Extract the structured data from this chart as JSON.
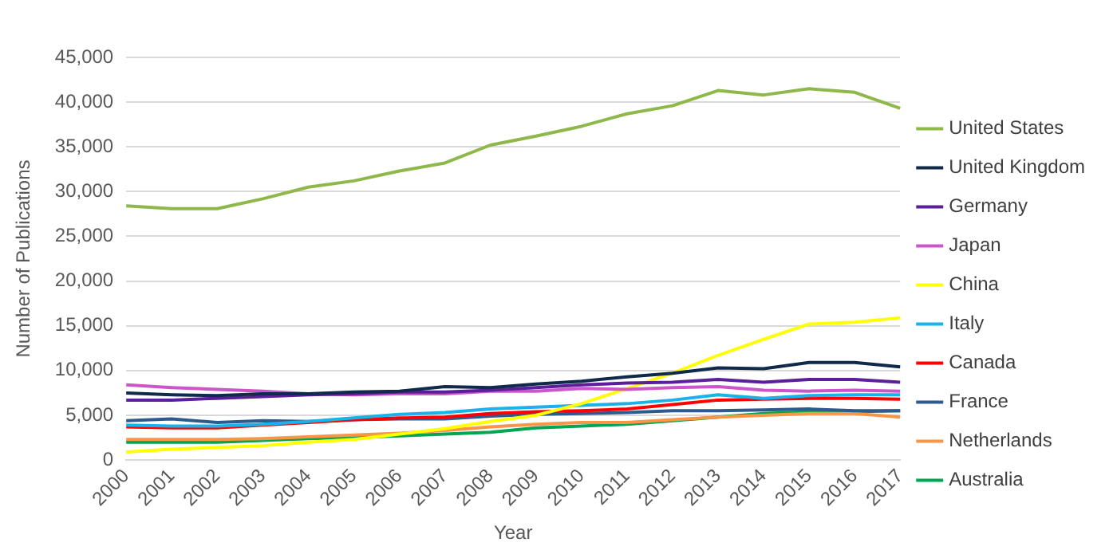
{
  "chart_data": {
    "type": "line",
    "xlabel": "Year",
    "ylabel": "Number of Publications",
    "categories": [
      "2000",
      "2001",
      "2002",
      "2003",
      "2004",
      "2005",
      "2006",
      "2007",
      "2008",
      "2009",
      "2010",
      "2011",
      "2012",
      "2013",
      "2014",
      "2015",
      "2016",
      "2017"
    ],
    "ylim": [
      0,
      45000
    ],
    "yticks": [
      {
        "value": 0,
        "label": "0"
      },
      {
        "value": 5000,
        "label": "5,000"
      },
      {
        "value": 10000,
        "label": "10,000"
      },
      {
        "value": 15000,
        "label": "15,000"
      },
      {
        "value": 20000,
        "label": "20,000"
      },
      {
        "value": 25000,
        "label": "25,000"
      },
      {
        "value": 30000,
        "label": "30,000"
      },
      {
        "value": 35000,
        "label": "35,000"
      },
      {
        "value": 40000,
        "label": "40,000"
      },
      {
        "value": 45000,
        "label": "45,000"
      }
    ],
    "grid": "y",
    "legend": "right",
    "marker": "none",
    "line_style": "solid",
    "series": [
      {
        "name": "United States",
        "color": "#8fb84a",
        "values": [
          28400,
          28100,
          28100,
          29200,
          30500,
          31200,
          32300,
          33200,
          35200,
          36200,
          37300,
          38700,
          39600,
          41300,
          40800,
          41500,
          41100,
          39300
        ]
      },
      {
        "name": "United Kingdom",
        "color": "#0f2a4a",
        "values": [
          7500,
          7300,
          7200,
          7400,
          7400,
          7600,
          7700,
          8200,
          8100,
          8500,
          8800,
          9300,
          9700,
          10300,
          10200,
          10900,
          10900,
          10400
        ]
      },
      {
        "name": "Germany",
        "color": "#5b1f9a",
        "values": [
          6700,
          6700,
          6900,
          7100,
          7300,
          7400,
          7600,
          7600,
          7800,
          8100,
          8400,
          8600,
          8700,
          9000,
          8700,
          9000,
          9000,
          8700
        ]
      },
      {
        "name": "Japan",
        "color": "#cc55cc",
        "values": [
          8400,
          8100,
          7900,
          7700,
          7400,
          7300,
          7400,
          7400,
          7700,
          7700,
          8000,
          7900,
          8100,
          8200,
          7800,
          7700,
          7800,
          7700
        ]
      },
      {
        "name": "China",
        "color": "#ffff00",
        "values": [
          900,
          1200,
          1400,
          1600,
          2000,
          2300,
          2900,
          3500,
          4300,
          5000,
          6300,
          8000,
          9700,
          11700,
          13500,
          15200,
          15400,
          15900
        ]
      },
      {
        "name": "Italy",
        "color": "#1ab2ea",
        "values": [
          3900,
          3800,
          3800,
          4000,
          4300,
          4700,
          5100,
          5300,
          5700,
          5900,
          6100,
          6300,
          6700,
          7300,
          6900,
          7200,
          7300,
          7300
        ]
      },
      {
        "name": "Canada",
        "color": "#ff0000",
        "values": [
          3700,
          3600,
          3600,
          3900,
          4200,
          4500,
          4700,
          4800,
          5200,
          5400,
          5500,
          5700,
          6200,
          6700,
          6800,
          6900,
          6900,
          6800
        ]
      },
      {
        "name": "France",
        "color": "#2e5b8f",
        "values": [
          4400,
          4600,
          4200,
          4400,
          4300,
          4500,
          4600,
          4600,
          4900,
          5100,
          5200,
          5300,
          5500,
          5500,
          5600,
          5700,
          5500,
          5500
        ]
      },
      {
        "name": "Netherlands",
        "color": "#f79646",
        "values": [
          2300,
          2300,
          2300,
          2400,
          2600,
          2800,
          3000,
          3300,
          3700,
          4000,
          4200,
          4200,
          4500,
          4800,
          5000,
          5200,
          5200,
          4800
        ]
      },
      {
        "name": "Australia",
        "color": "#00a651",
        "values": [
          2000,
          2000,
          2000,
          2200,
          2400,
          2500,
          2700,
          2900,
          3100,
          3600,
          3800,
          4000,
          4400,
          4800,
          5200,
          5400,
          5400,
          5500
        ]
      }
    ]
  }
}
